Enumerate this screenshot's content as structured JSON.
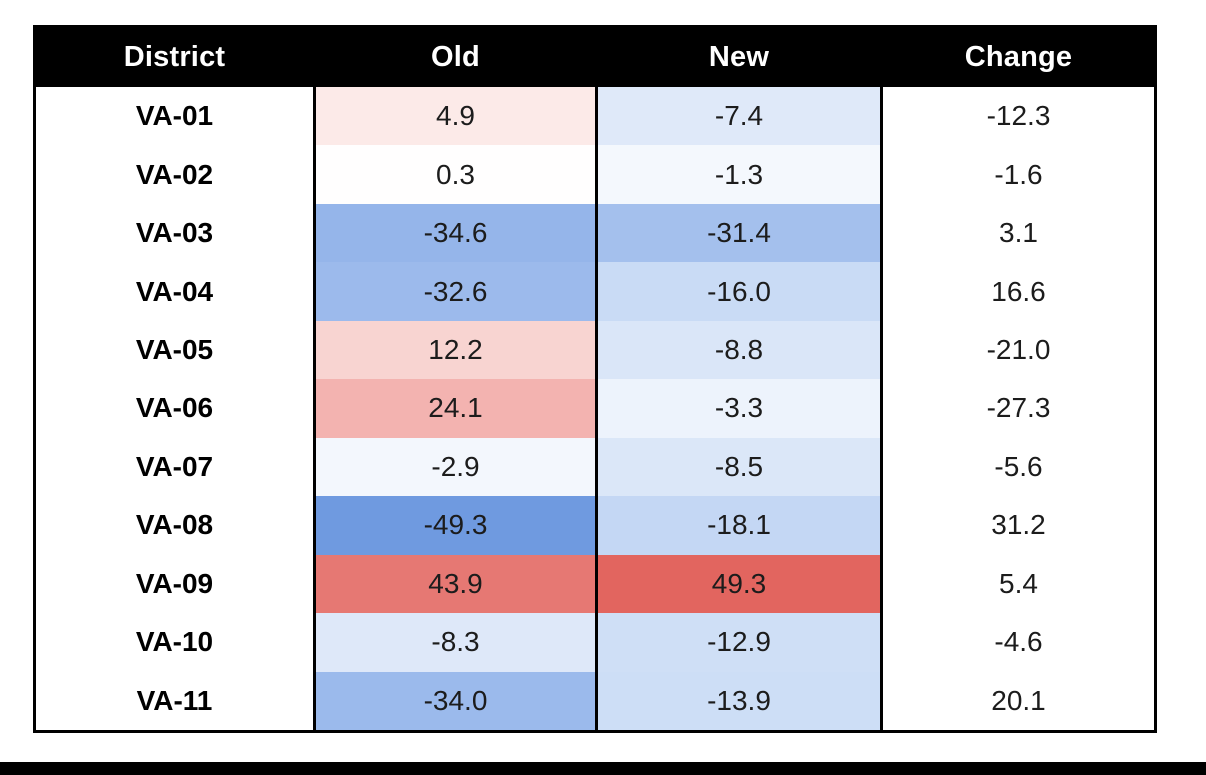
{
  "page": {
    "background": "#ffffff",
    "bottom_bar_color": "#000000"
  },
  "table": {
    "columns": [
      "District",
      "Old",
      "New",
      "Change"
    ],
    "header_bg": "#000000",
    "header_text_color": "#ffffff",
    "border_color": "#000000",
    "rows": [
      {
        "district": "VA-01",
        "old": "4.9",
        "new": "-7.4",
        "change": "-12.3",
        "old_bg": "#fceae8",
        "new_bg": "#dfe9f9"
      },
      {
        "district": "VA-02",
        "old": "0.3",
        "new": "-1.3",
        "change": "-1.6",
        "old_bg": "#fffefe",
        "new_bg": "#f4f8fd"
      },
      {
        "district": "VA-03",
        "old": "-34.6",
        "new": "-31.4",
        "change": "3.1",
        "old_bg": "#95b5ea",
        "new_bg": "#a4c0ed"
      },
      {
        "district": "VA-04",
        "old": "-32.6",
        "new": "-16.0",
        "change": "16.6",
        "old_bg": "#9cbaec",
        "new_bg": "#c9dbf5"
      },
      {
        "district": "VA-05",
        "old": "12.2",
        "new": "-8.8",
        "change": "-21.0",
        "old_bg": "#f8d4d1",
        "new_bg": "#dae6f8"
      },
      {
        "district": "VA-06",
        "old": "24.1",
        "new": "-3.3",
        "change": "-27.3",
        "old_bg": "#f3b3b0",
        "new_bg": "#edf3fc"
      },
      {
        "district": "VA-07",
        "old": "-2.9",
        "new": "-8.5",
        "change": "-5.6",
        "old_bg": "#f3f7fd",
        "new_bg": "#dbe7f8"
      },
      {
        "district": "VA-08",
        "old": "-49.3",
        "new": "-18.1",
        "change": "31.2",
        "old_bg": "#6f9ae0",
        "new_bg": "#c4d7f4"
      },
      {
        "district": "VA-09",
        "old": "43.9",
        "new": "49.3",
        "change": "5.4",
        "old_bg": "#e67873",
        "new_bg": "#e2655f"
      },
      {
        "district": "VA-10",
        "old": "-8.3",
        "new": "-12.9",
        "change": "-4.6",
        "old_bg": "#dee8f9",
        "new_bg": "#cfdff6"
      },
      {
        "district": "VA-11",
        "old": "-34.0",
        "new": "-13.9",
        "change": "20.1",
        "old_bg": "#9bbaec",
        "new_bg": "#cddef6"
      }
    ]
  },
  "chart_data": {
    "type": "table",
    "title": "",
    "columns": [
      "District",
      "Old",
      "New",
      "Change"
    ],
    "rows": [
      [
        "VA-01",
        4.9,
        -7.4,
        -12.3
      ],
      [
        "VA-02",
        0.3,
        -1.3,
        -1.6
      ],
      [
        "VA-03",
        -34.6,
        -31.4,
        3.1
      ],
      [
        "VA-04",
        -32.6,
        -16.0,
        16.6
      ],
      [
        "VA-05",
        12.2,
        -8.8,
        -21.0
      ],
      [
        "VA-06",
        24.1,
        -3.3,
        -27.3
      ],
      [
        "VA-07",
        -2.9,
        -8.5,
        -5.6
      ],
      [
        "VA-08",
        -49.3,
        -18.1,
        31.2
      ],
      [
        "VA-09",
        43.9,
        49.3,
        5.4
      ],
      [
        "VA-10",
        -8.3,
        -12.9,
        -4.6
      ],
      [
        "VA-11",
        -34.0,
        -13.9,
        20.1
      ]
    ],
    "heatmap": {
      "shaded_columns": [
        "Old",
        "New"
      ],
      "positive_color": "#e2655f",
      "neutral_color": "#ffffff",
      "negative_color": "#6d97df",
      "approx_domain": [
        -50,
        50
      ]
    },
    "legend_position": "none",
    "grid": "column-borders-only"
  }
}
